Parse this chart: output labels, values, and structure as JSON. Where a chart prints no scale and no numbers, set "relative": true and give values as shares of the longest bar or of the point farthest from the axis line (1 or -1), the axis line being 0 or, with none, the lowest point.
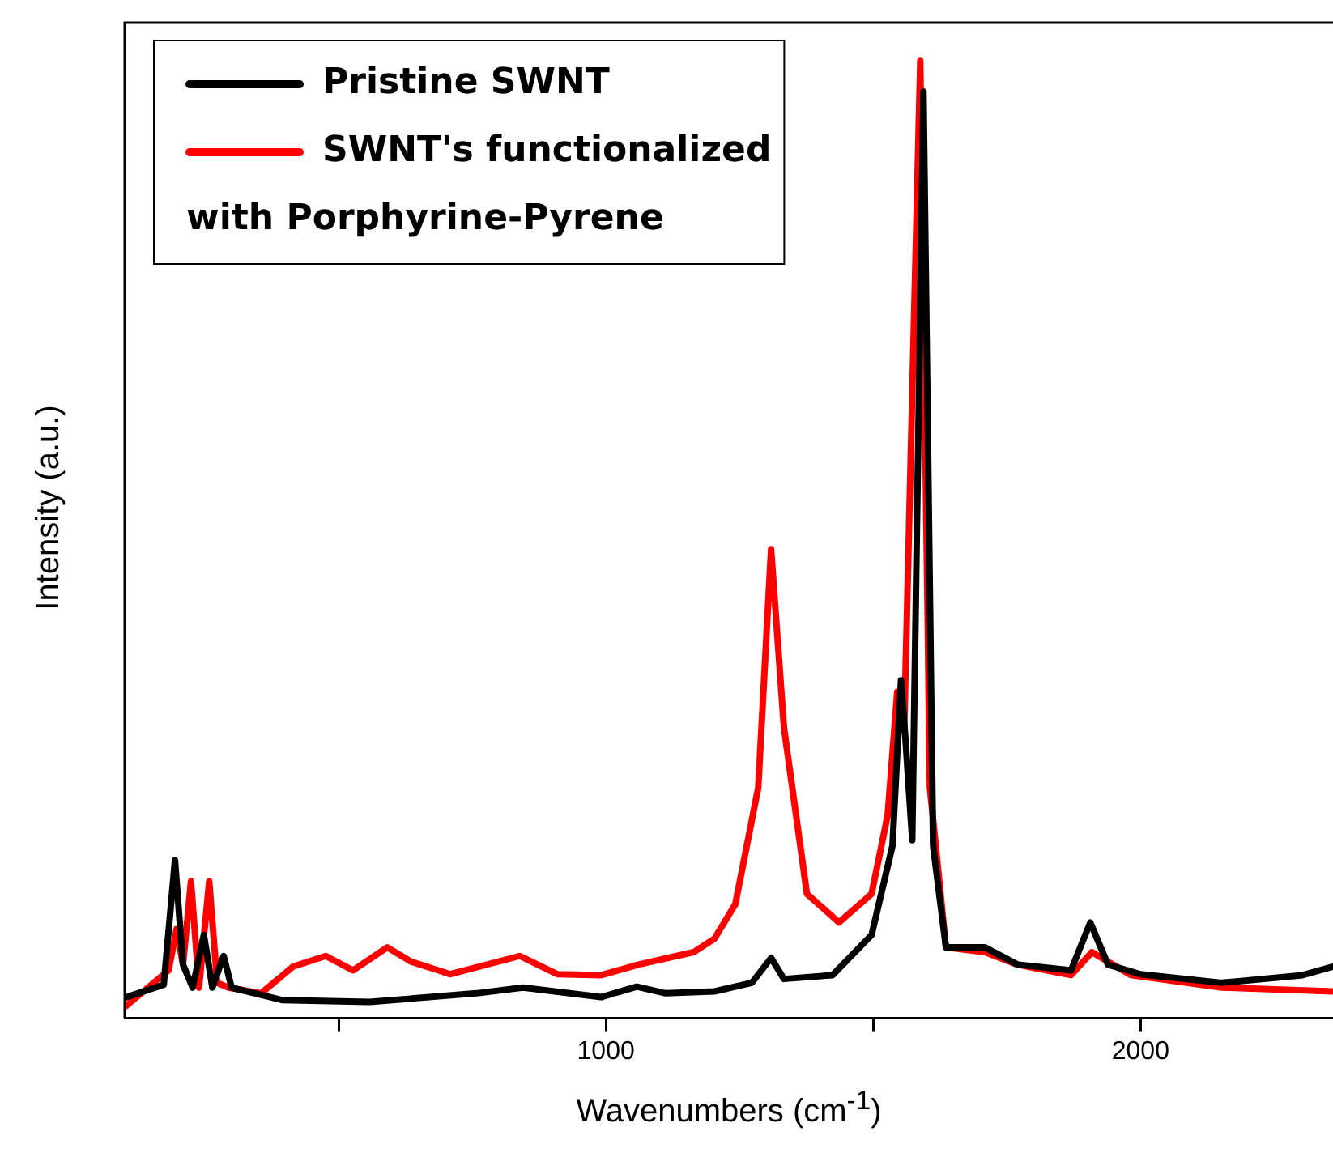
{
  "chart_data": {
    "type": "line",
    "xlabel": "Wavenumbers (cm$^{-1}$)",
    "ylabel": "Intensity (a.u.)",
    "relative": true,
    "xlim": [
      100,
      2360
    ],
    "xticks": [
      {
        "value": 500,
        "label": null
      },
      1000,
      {
        "value": 1500,
        "label": null
      },
      2000
    ],
    "legend": "top left",
    "marker": "none",
    "line_style": "solid",
    "series": [
      {
        "name": "Pristine SWNT",
        "color": "#000000",
        "x": [
          103,
          173,
          194,
          209,
          227,
          248,
          264,
          285,
          300,
          394,
          558,
          758,
          845,
          991,
          1058,
          1112,
          1203,
          1273,
          1309,
          1333,
          1424,
          1497,
          1536,
          1552,
          1561,
          1573,
          1594,
          1612,
          1636,
          1709,
          1770,
          1870,
          1906,
          1939,
          2000,
          2152,
          2303,
          2360
        ],
        "values": [
          0.022,
          0.035,
          0.165,
          0.056,
          0.032,
          0.087,
          0.032,
          0.065,
          0.032,
          0.019,
          0.017,
          0.026,
          0.032,
          0.022,
          0.033,
          0.026,
          0.028,
          0.037,
          0.063,
          0.041,
          0.045,
          0.087,
          0.18,
          0.353,
          0.286,
          0.186,
          0.968,
          0.18,
          0.074,
          0.074,
          0.056,
          0.05,
          0.1,
          0.056,
          0.046,
          0.037,
          0.045,
          0.054
        ]
      },
      {
        "name": "SWNT's functionalized with Porphyrine-Pyrene",
        "color": "#ff0000",
        "x": [
          103,
          182,
          197,
          209,
          224,
          239,
          258,
          273,
          294,
          355,
          415,
          476,
          527,
          591,
          636,
          709,
          839,
          909,
          991,
          1061,
          1164,
          1203,
          1242,
          1285,
          1309,
          1333,
          1376,
          1436,
          1497,
          1527,
          1545,
          1558,
          1588,
          1606,
          1636,
          1709,
          1770,
          1870,
          1909,
          1982,
          2152,
          2360
        ],
        "values": [
          0.013,
          0.05,
          0.093,
          0.056,
          0.143,
          0.032,
          0.143,
          0.037,
          0.032,
          0.026,
          0.054,
          0.065,
          0.05,
          0.074,
          0.059,
          0.046,
          0.065,
          0.046,
          0.045,
          0.056,
          0.069,
          0.083,
          0.119,
          0.241,
          0.49,
          0.304,
          0.13,
          0.1,
          0.13,
          0.212,
          0.341,
          0.304,
          1,
          0.241,
          0.074,
          0.069,
          0.056,
          0.045,
          0.069,
          0.045,
          0.032,
          0.028
        ]
      }
    ]
  }
}
